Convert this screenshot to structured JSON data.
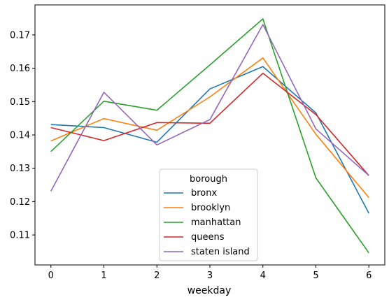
{
  "chart_data": {
    "type": "line",
    "title": "",
    "xlabel": "weekday",
    "ylabel": "",
    "x": [
      0,
      1,
      2,
      3,
      4,
      5,
      6
    ],
    "xlim": [
      -0.3,
      6.3
    ],
    "ylim": [
      0.101,
      0.179
    ],
    "xticks": [
      "0",
      "1",
      "2",
      "3",
      "4",
      "5",
      "6"
    ],
    "yticks": [
      0.11,
      0.12,
      0.13,
      0.14,
      0.15,
      0.16,
      0.17
    ],
    "ytick_labels": [
      "0.11",
      "0.12",
      "0.13",
      "0.14",
      "0.15",
      "0.16",
      "0.17"
    ],
    "grid": false,
    "legend": {
      "title": "borough",
      "placement": "lower-center"
    },
    "series": [
      {
        "name": "bronx",
        "color": "#1f77b4",
        "values": [
          0.1431,
          0.1422,
          0.1378,
          0.1538,
          0.1605,
          0.1466,
          0.1165
        ]
      },
      {
        "name": "brooklyn",
        "color": "#ff7f0e",
        "values": [
          0.1382,
          0.1449,
          0.1414,
          0.1514,
          0.1631,
          0.1402,
          0.1212
        ]
      },
      {
        "name": "manhattan",
        "color": "#2ca02c",
        "values": [
          0.135,
          0.1501,
          0.1474,
          0.161,
          0.1748,
          0.1271,
          0.1046
        ]
      },
      {
        "name": "queens",
        "color": "#d62728",
        "values": [
          0.1422,
          0.1383,
          0.1437,
          0.1435,
          0.1585,
          0.1461,
          0.1278
        ]
      },
      {
        "name": "staten island",
        "color": "#9467bd",
        "values": [
          0.1231,
          0.1528,
          0.137,
          0.1446,
          0.1731,
          0.1418,
          0.1278
        ]
      }
    ]
  }
}
